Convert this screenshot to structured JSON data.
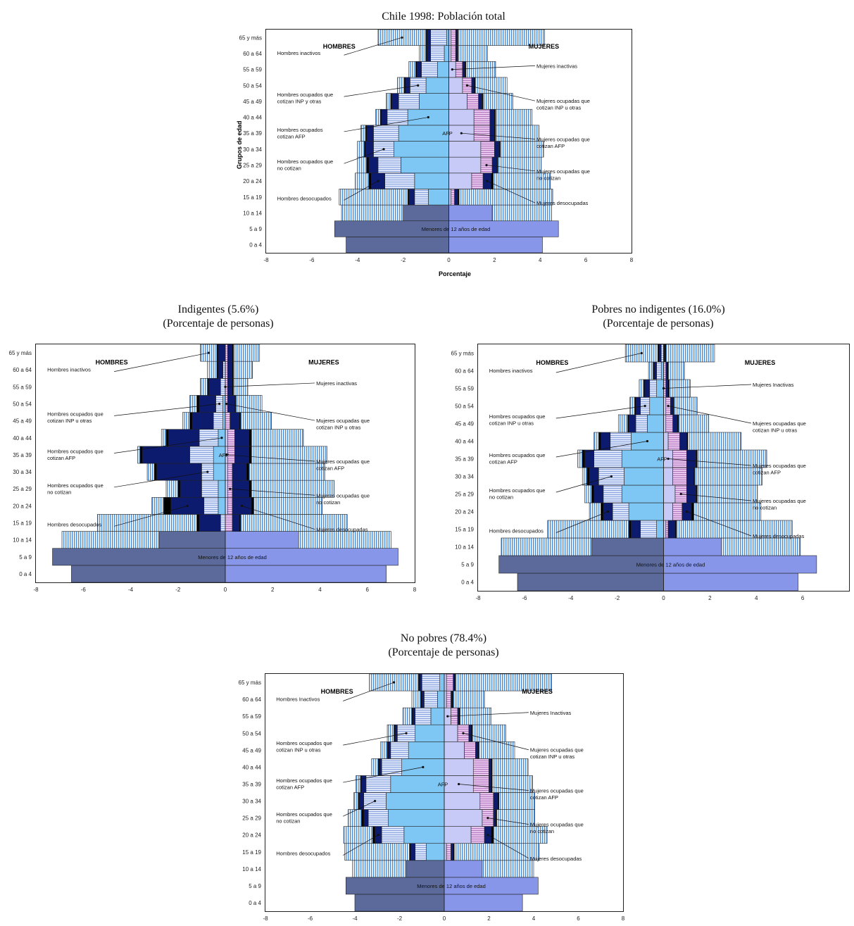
{
  "titles": {
    "total": "Chile 1998: Población total",
    "indig": [
      "Indigentes (5.6%)",
      "(Porcentaje de personas)"
    ],
    "pobres": [
      "Pobres no indigentes (16.0%)",
      "(Porcentaje de personas)"
    ],
    "nopobres": [
      "No pobres (78.4%)",
      "(Porcentaje de personas)"
    ]
  },
  "colors": {
    "menores_h": "#5b6a9a",
    "menores_m": "#8796e8",
    "afp_h": "#7ec6f3",
    "afp_m": "#c7caf7",
    "no_cotizan": "#0d1b6e",
    "inp_h": "#dbe4f8",
    "inp_m": "#e7c4ec",
    "inactivos": "#4c8ed6",
    "desocupados": "#000000"
  },
  "chart_data": [
    {
      "type": "bar",
      "id": "total",
      "title": "Chile 1998: Población total",
      "xlabel": "Porcentaje",
      "ylabel": "Grupos de edad",
      "xlim": [
        -8,
        8
      ],
      "xticks": [
        -8,
        -6,
        -4,
        -2,
        0,
        2,
        4,
        6,
        8
      ],
      "categories": [
        "0 a 4",
        "5 a 9",
        "10 a 14",
        "15 a 19",
        "20 a 24",
        "25 a 29",
        "30 a 34",
        "35 a 39",
        "40 a 44",
        "45 a 49",
        "50 a 54",
        "55 a 59",
        "60 a 64",
        "65 y más"
      ],
      "groups": [
        "HOMBRES",
        "MUJERES"
      ],
      "center_labels": {
        "menores": "Menores de 12 años de edad",
        "afp": "AFP"
      },
      "men": {
        "menores": [
          4.5,
          5.0,
          2.0,
          0,
          0,
          0,
          0,
          0,
          0,
          0,
          0,
          0,
          0,
          0
        ],
        "afp": [
          0,
          0,
          0,
          0.9,
          1.5,
          2.1,
          2.4,
          2.2,
          1.8,
          1.3,
          1.0,
          0.5,
          0.2,
          0.1
        ],
        "inp": [
          0,
          0,
          0,
          0.6,
          1.3,
          1.0,
          0.9,
          1.1,
          0.9,
          0.9,
          0.7,
          0.7,
          0.6,
          0.7
        ],
        "no_cotizan": [
          0,
          0,
          0,
          0.25,
          0.6,
          0.4,
          0.35,
          0.3,
          0.25,
          0.3,
          0.2,
          0.2,
          0.15,
          0.15
        ],
        "desocupados": [
          0,
          0,
          0,
          0.05,
          0.1,
          0.1,
          0.05,
          0.05,
          0.05,
          0.05,
          0.05,
          0.05,
          0.05,
          0.05
        ],
        "inactivos": [
          0,
          0,
          2.7,
          3.0,
          0.6,
          0.4,
          0.3,
          0.2,
          0.2,
          0.2,
          0.3,
          0.3,
          0.3,
          2.1
        ]
      },
      "women": {
        "menores": [
          4.1,
          4.8,
          1.9,
          0,
          0,
          0,
          0,
          0,
          0,
          0,
          0,
          0,
          0,
          0
        ],
        "afp": [
          0,
          0,
          0,
          0.1,
          1.0,
          1.4,
          1.4,
          1.1,
          1.1,
          0.8,
          0.6,
          0.3,
          0.1,
          0.1
        ],
        "inp": [
          0,
          0,
          0,
          0.15,
          0.5,
          0.5,
          0.6,
          0.7,
          0.7,
          0.5,
          0.4,
          0.3,
          0.2,
          0.2
        ],
        "no_cotizan": [
          0,
          0,
          0,
          0.15,
          0.35,
          0.2,
          0.2,
          0.2,
          0.2,
          0.15,
          0.1,
          0.1,
          0.05,
          0.05
        ],
        "desocupados": [
          0,
          0,
          0,
          0.05,
          0.1,
          0.05,
          0.05,
          0.05,
          0.05,
          0.05,
          0.05,
          0.05,
          0.05,
          0.05
        ],
        "inactivos": [
          0,
          0,
          2.6,
          4.1,
          2.5,
          1.9,
          1.9,
          1.9,
          1.6,
          1.3,
          1.4,
          1.3,
          1.3,
          3.8
        ]
      },
      "annotations": {
        "left": [
          "Hombres inactivos",
          "Hombres ocupados que cotizan INP y otras",
          "Hombres ocupados cotizan AFP",
          "Hombres ocupados que no cotizan",
          "Hombres desocupados"
        ],
        "right": [
          "Mujeres inactivas",
          "Mujeres ocupadas que cotizan INP u otras",
          "Mujeres ocupadas que cotizan AFP",
          "Mujeres ocupadas que no cotizan",
          "Mujeres desocupadas"
        ]
      }
    },
    {
      "type": "bar",
      "id": "indig",
      "title": "Indigentes (5.6%)",
      "subtitle": "(Porcentaje de personas)",
      "xlim": [
        -8,
        8
      ],
      "xticks": [
        -8,
        -6,
        -4,
        -2,
        0,
        2,
        4,
        6,
        8
      ],
      "categories": [
        "0 a 4",
        "5 a 9",
        "10 a 14",
        "15 a 19",
        "20 a 24",
        "25 a 29",
        "30 a 34",
        "35 a 39",
        "40 a 44",
        "45 a 49",
        "50 a 54",
        "55 a 59",
        "60 a 64",
        "65 y más"
      ],
      "groups": [
        "HOMBRES",
        "MUJERES"
      ],
      "center_labels": {
        "menores": "Menores de 12 años de edad",
        "afp": "AFP"
      },
      "men": {
        "menores": [
          6.5,
          7.3,
          2.8,
          0,
          0,
          0,
          0,
          0,
          0,
          0,
          0,
          0,
          0,
          0
        ],
        "afp": [
          0,
          0,
          0,
          0.0,
          0.3,
          0.3,
          0.5,
          0.5,
          0.3,
          0.1,
          0.1,
          0.0,
          0.0,
          0.0
        ],
        "inp": [
          0,
          0,
          0,
          0.2,
          0.6,
          0.7,
          0.5,
          1.0,
          0.8,
          0.4,
          0.3,
          0.2,
          0.1,
          0.0
        ],
        "no_cotizan": [
          0,
          0,
          0,
          0.9,
          1.4,
          0.9,
          1.9,
          2.0,
          1.3,
          0.9,
          0.7,
          0.5,
          0.2,
          0.3
        ],
        "desocupados": [
          0,
          0,
          0,
          0.1,
          0.3,
          0.1,
          0.1,
          0.1,
          0.1,
          0.1,
          0.1,
          0.05,
          0.05,
          0.05
        ],
        "inactivos": [
          0,
          0,
          4.1,
          4.2,
          0.5,
          0.5,
          0.3,
          0.1,
          0.2,
          0.3,
          0.3,
          0.3,
          0.4,
          0.7
        ]
      },
      "women": {
        "menores": [
          6.8,
          7.3,
          3.1,
          0,
          0,
          0,
          0,
          0,
          0,
          0,
          0,
          0,
          0,
          0
        ],
        "afp": [
          0,
          0,
          0,
          0.0,
          0.1,
          0.1,
          0.1,
          0.1,
          0.1,
          0.0,
          0.0,
          0.0,
          0.0,
          0.0
        ],
        "inp": [
          0,
          0,
          0,
          0.3,
          0.2,
          0.2,
          0.2,
          0.3,
          0.3,
          0.2,
          0.1,
          0.1,
          0.1,
          0.1
        ],
        "no_cotizan": [
          0,
          0,
          0,
          0.3,
          0.8,
          0.7,
          0.6,
          0.6,
          0.6,
          0.4,
          0.3,
          0.2,
          0.2,
          0.2
        ],
        "desocupados": [
          0,
          0,
          0,
          0.05,
          0.1,
          0.1,
          0.1,
          0.1,
          0.1,
          0.05,
          0.05,
          0.05,
          0.05,
          0.05
        ],
        "inactivos": [
          0,
          0,
          3.9,
          4.5,
          2.9,
          3.5,
          3.2,
          3.2,
          2.2,
          1.3,
          1.1,
          0.6,
          0.8,
          1.1
        ]
      },
      "annotations": {
        "left": [
          "Hombres inactivos",
          "Hombres ocupados que cotizan INP u otras",
          "Hombres ocupados que cotizan AFP",
          "Hombres ocupados que no cotizan",
          "Hombres desocupados"
        ],
        "right": [
          "Mujeres inactivas",
          "Mujeres ocupadas que cotizan INP u otras",
          "Mujeres ocupadas que cotizan AFP",
          "Mujeres ocupadas que no cotizan",
          "Mujeres desocupadas"
        ]
      }
    },
    {
      "type": "bar",
      "id": "pobres",
      "title": "Pobres no indigentes (16.0%)",
      "subtitle": "(Porcentaje de personas)",
      "xlim": [
        -8,
        8
      ],
      "xticks": [
        -8,
        -6,
        -4,
        -2,
        0,
        2,
        4,
        6
      ],
      "categories": [
        "0 a 4",
        "5 a 9",
        "10 a 14",
        "15 a 19",
        "20 a 24",
        "25 a 29",
        "30 a 34",
        "35 a 39",
        "40 a 44",
        "45 a 49",
        "50 a 54",
        "55 a 59",
        "60 a 64",
        "65 y más"
      ],
      "groups": [
        "HOMBRES",
        "MUJERES"
      ],
      "center_labels": {
        "menores": "Menores de 12 años de edad",
        "afp": "AFP"
      },
      "men": {
        "menores": [
          6.3,
          7.1,
          3.1,
          0,
          0,
          0,
          0,
          0,
          0,
          0,
          0,
          0,
          0,
          0
        ],
        "afp": [
          0,
          0,
          0,
          0.3,
          1.5,
          1.8,
          1.7,
          1.8,
          1.4,
          0.7,
          0.6,
          0.3,
          0.1,
          0.0
        ],
        "inp": [
          0,
          0,
          0,
          0.7,
          0.7,
          0.8,
          1.1,
          1.2,
          0.9,
          0.5,
          0.4,
          0.3,
          0.2,
          0.1
        ],
        "no_cotizan": [
          0,
          0,
          0,
          0.4,
          0.4,
          0.4,
          0.4,
          0.4,
          0.4,
          0.3,
          0.2,
          0.2,
          0.1,
          0.1
        ],
        "desocupados": [
          0,
          0,
          0,
          0.1,
          0.1,
          0.1,
          0.1,
          0.1,
          0.1,
          0.05,
          0.05,
          0.05,
          0.05,
          0.05
        ],
        "inactivos": [
          0,
          0,
          3.9,
          3.5,
          0.5,
          0.3,
          0.2,
          0.2,
          0.2,
          0.4,
          0.2,
          0.2,
          0.2,
          1.4
        ]
      },
      "women": {
        "menores": [
          5.8,
          6.6,
          2.5,
          0,
          0,
          0,
          0,
          0,
          0,
          0,
          0,
          0,
          0,
          0
        ],
        "afp": [
          0,
          0,
          0,
          0.1,
          0.4,
          0.5,
          0.4,
          0.4,
          0.2,
          0.1,
          0.1,
          0.0,
          0.0,
          0.0
        ],
        "inp": [
          0,
          0,
          0,
          0.1,
          0.4,
          0.5,
          0.6,
          0.6,
          0.5,
          0.3,
          0.2,
          0.1,
          0.1,
          0.0
        ],
        "no_cotizan": [
          0,
          0,
          0,
          0.3,
          0.4,
          0.4,
          0.3,
          0.4,
          0.3,
          0.2,
          0.1,
          0.1,
          0.05,
          0.05
        ],
        "desocupados": [
          0,
          0,
          0,
          0.05,
          0.1,
          0.05,
          0.05,
          0.05,
          0.05,
          0.05,
          0.05,
          0.05,
          0.05,
          0.05
        ],
        "inactivos": [
          0,
          0,
          3.4,
          5.0,
          2.9,
          2.6,
          2.9,
          3.0,
          2.3,
          1.3,
          1.0,
          0.9,
          0.7,
          2.1
        ]
      },
      "annotations": {
        "left": [
          "Hombres inactivos",
          "Hombres ocupados que cotizan INP u otras",
          "Hombres ocupados que cotizan AFP",
          "Hombres ocupados que no cotizan",
          "Hombres desocupados"
        ],
        "right": [
          "Mujeres Inactivas",
          "Mujeres ocupadas que cotizan INP u otras",
          "Mujeres ocupadas que cotizan AFP",
          "Mujeres ocupadas que no cotizan",
          "Mujeres desocupadas"
        ]
      }
    },
    {
      "type": "bar",
      "id": "nopobres",
      "title": "No pobres (78.4%)",
      "subtitle": "(Porcentaje de personas)",
      "xlim": [
        -8,
        8
      ],
      "xticks": [
        -8,
        -6,
        -4,
        -2,
        0,
        2,
        4,
        6,
        8
      ],
      "categories": [
        "0 a 4",
        "5 a 9",
        "10 a 14",
        "15 a 19",
        "20 a 24",
        "25 a 29",
        "30 a 34",
        "35 a 39",
        "40 a 44",
        "45 a 49",
        "50 a 54",
        "55 a 59",
        "60 a 64",
        "65 y más"
      ],
      "groups": [
        "HOMBRES",
        "MUJERES"
      ],
      "center_labels": {
        "menores": "Menores de 12 años de edad",
        "afp": "AFP"
      },
      "men": {
        "menores": [
          4.0,
          4.4,
          1.7,
          0,
          0,
          0,
          0,
          0,
          0,
          0,
          0,
          0,
          0,
          0
        ],
        "afp": [
          0,
          0,
          0,
          0.8,
          1.8,
          2.5,
          2.6,
          2.4,
          1.9,
          1.6,
          1.3,
          0.6,
          0.3,
          0.2
        ],
        "inp": [
          0,
          0,
          0,
          0.5,
          1.0,
          0.9,
          1.0,
          1.1,
          0.9,
          0.8,
          0.8,
          0.7,
          0.6,
          0.8
        ],
        "no_cotizan": [
          0,
          0,
          0,
          0.2,
          0.3,
          0.2,
          0.2,
          0.2,
          0.1,
          0.1,
          0.1,
          0.1,
          0.1,
          0.1
        ],
        "desocupados": [
          0,
          0,
          0,
          0.05,
          0.1,
          0.1,
          0.05,
          0.05,
          0.05,
          0.05,
          0.05,
          0.05,
          0.05,
          0.05
        ],
        "inactivos": [
          0,
          0,
          2.4,
          2.9,
          1.3,
          0.6,
          0.2,
          0.2,
          0.3,
          0.3,
          0.3,
          0.4,
          0.4,
          2.2
        ]
      },
      "women": {
        "menores": [
          3.5,
          4.2,
          1.7,
          0,
          0,
          0,
          0,
          0,
          0,
          0,
          0,
          0,
          0,
          0
        ],
        "afp": [
          0,
          0,
          0,
          0.1,
          1.2,
          1.7,
          1.6,
          1.3,
          1.3,
          0.9,
          0.6,
          0.3,
          0.1,
          0.1
        ],
        "inp": [
          0,
          0,
          0,
          0.2,
          0.6,
          0.5,
          0.6,
          0.7,
          0.7,
          0.5,
          0.5,
          0.3,
          0.2,
          0.3
        ],
        "no_cotizan": [
          0,
          0,
          0,
          0.1,
          0.3,
          0.1,
          0.2,
          0.1,
          0.1,
          0.1,
          0.1,
          0.05,
          0.05,
          0.05
        ],
        "desocupados": [
          0,
          0,
          0,
          0.05,
          0.1,
          0.05,
          0.05,
          0.05,
          0.05,
          0.05,
          0.05,
          0.05,
          0.05,
          0.05
        ],
        "inactivos": [
          0,
          0,
          2.3,
          3.8,
          2.4,
          1.7,
          1.6,
          1.8,
          1.6,
          1.6,
          1.5,
          1.4,
          1.4,
          4.3
        ]
      },
      "annotations": {
        "left": [
          "Hombres Inactivos",
          "Hombres ocupados que cotizan INP u otras",
          "Hombres ocupados que cotizan AFP",
          "Hombres ocupados que no cotizan",
          "Hombres desocupados"
        ],
        "right": [
          "Mujeres Inactivas",
          "Mujeres ocupadas que cotizan INP u otras",
          "Mujeres ocupadas que cotizan AFP",
          "Mujeres ocupadas que no cotizan",
          "Mujeres desocupadas"
        ]
      }
    }
  ]
}
